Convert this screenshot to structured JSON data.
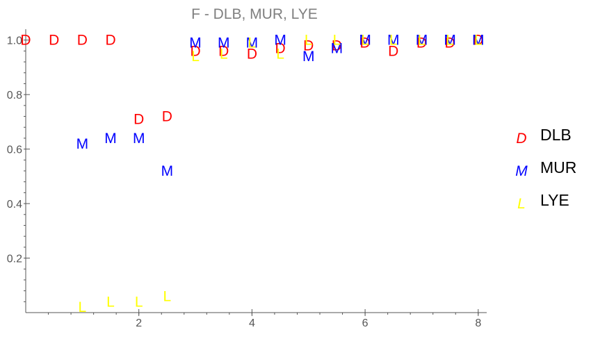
{
  "chart_data": {
    "type": "scatter",
    "title": "F - DLB, MUR, LYE",
    "xlabel": "",
    "ylabel": "",
    "xlim": [
      0,
      8.15
    ],
    "ylim": [
      0,
      1.04
    ],
    "x_ticks": [
      2,
      4,
      6,
      8
    ],
    "y_ticks": [
      0.2,
      0.4,
      0.6,
      0.8,
      1.0
    ],
    "x_minor_step": 0.4,
    "y_minor_step": 0.04,
    "legend_position": "right",
    "series": [
      {
        "name": "DLB",
        "marker": "D",
        "color": "#ff0000",
        "points": [
          [
            0.0,
            1.0
          ],
          [
            0.5,
            1.0
          ],
          [
            1.0,
            1.0
          ],
          [
            1.5,
            1.0
          ],
          [
            2.0,
            0.71
          ],
          [
            2.5,
            0.72
          ],
          [
            3.0,
            0.96
          ],
          [
            3.5,
            0.96
          ],
          [
            4.0,
            0.95
          ],
          [
            4.5,
            0.97
          ],
          [
            5.0,
            0.98
          ],
          [
            5.5,
            0.98
          ],
          [
            6.0,
            0.99
          ],
          [
            6.5,
            0.96
          ],
          [
            7.0,
            0.99
          ],
          [
            7.5,
            0.99
          ],
          [
            8.0,
            1.0
          ]
        ]
      },
      {
        "name": "MUR",
        "marker": "M",
        "color": "#0000ff",
        "points": [
          [
            1.0,
            0.62
          ],
          [
            1.5,
            0.64
          ],
          [
            2.0,
            0.64
          ],
          [
            2.5,
            0.52
          ],
          [
            3.0,
            0.99
          ],
          [
            3.5,
            0.99
          ],
          [
            4.0,
            0.99
          ],
          [
            4.5,
            1.0
          ],
          [
            5.0,
            0.94
          ],
          [
            5.5,
            0.97
          ],
          [
            6.0,
            1.0
          ],
          [
            6.5,
            1.0
          ],
          [
            7.0,
            1.0
          ],
          [
            7.5,
            1.0
          ],
          [
            8.0,
            1.0
          ]
        ]
      },
      {
        "name": "LYE",
        "marker": "L",
        "color": "#ffff00",
        "points": [
          [
            1.0,
            0.02
          ],
          [
            1.5,
            0.04
          ],
          [
            2.0,
            0.04
          ],
          [
            2.5,
            0.06
          ],
          [
            3.0,
            0.94
          ],
          [
            3.5,
            0.95
          ],
          [
            4.0,
            0.99
          ],
          [
            4.5,
            0.95
          ],
          [
            5.0,
            1.0
          ],
          [
            5.5,
            1.0
          ],
          [
            6.0,
            1.0
          ],
          [
            6.5,
            1.0
          ],
          [
            7.0,
            1.0
          ],
          [
            7.5,
            1.0
          ],
          [
            8.0,
            1.0
          ]
        ]
      }
    ]
  }
}
